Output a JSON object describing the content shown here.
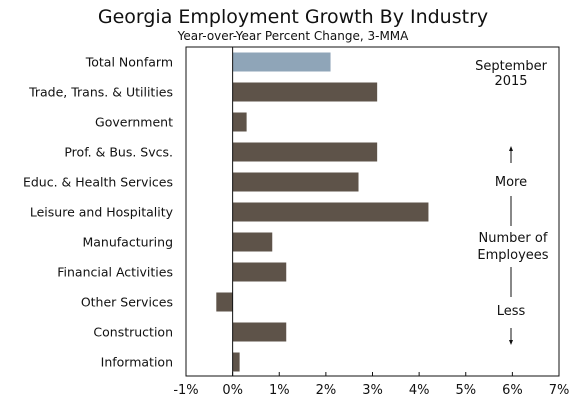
{
  "chart_data": {
    "type": "bar",
    "orientation": "horizontal",
    "title": "Georgia Employment Growth By Industry",
    "subtitle": "Year-over-Year Percent Change, 3-MMA",
    "categories": [
      "Total Nonfarm",
      "Trade, Trans. & Utilities",
      "Government",
      "Prof. & Bus. Svcs.",
      "Educ. & Health Services",
      "Leisure and Hospitality",
      "Manufacturing",
      "Financial Activities",
      "Other Services",
      "Construction",
      "Information"
    ],
    "values": [
      2.1,
      3.1,
      0.3,
      3.1,
      2.7,
      4.2,
      0.85,
      1.15,
      -0.35,
      1.15,
      0.15
    ],
    "highlight_category": "Total Nonfarm",
    "colors": {
      "highlight": "#8fa5b8",
      "bar": "#5e5349",
      "axis": "#111111"
    },
    "x_ticks": [
      "-1%",
      "0%",
      "1%",
      "2%",
      "3%",
      "4%",
      "5%",
      "6%",
      "7%"
    ],
    "xlim": [
      -1,
      7
    ],
    "grid": false,
    "annotations": {
      "date": [
        "September",
        "2015"
      ],
      "more": "More",
      "middle": [
        "Number of",
        "Employees"
      ],
      "less": "Less"
    }
  }
}
